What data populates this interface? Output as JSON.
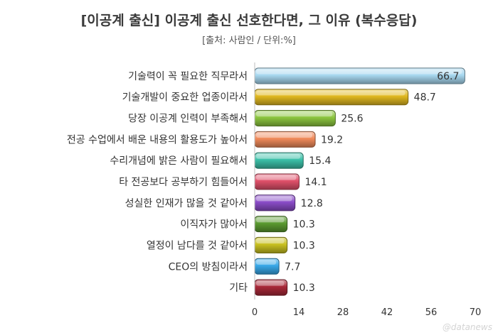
{
  "header": {
    "title": "[이공계 출신] 이공계 출신 선호한다면, 그 이유 (복수응답)",
    "source": "[출처: 사람인 / 단위:%]"
  },
  "watermark": "@datanews",
  "chart_data": {
    "type": "bar",
    "orientation": "horizontal",
    "title": "[이공계 출신] 이공계 출신 선호한다면, 그 이유 (복수응답)",
    "xlabel": "",
    "ylabel": "",
    "xlim": [
      0,
      70
    ],
    "xticks": [
      0,
      14,
      28,
      42,
      56,
      70
    ],
    "grid": false,
    "categories": [
      "기술력이 꼭 필요한 직무라서",
      "기술개발이 중요한 업종이라서",
      "당장 이공계 인력이 부족해서",
      "전공 수업에서 배운 내용의 활용도가 높아서",
      "수리개념에 밝은 사람이 필요해서",
      "타 전공보다 공부하기 힘들어서",
      "성실한 인재가 많을 것 같아서",
      "이직자가 많아서",
      "열정이 남다를 것 같아서",
      "CEO의 방침이라서",
      "기타"
    ],
    "values": [
      66.7,
      48.7,
      25.6,
      19.2,
      15.4,
      14.1,
      12.8,
      10.3,
      10.3,
      7.7,
      10.3
    ],
    "value_labels": [
      "66.7",
      "48.7",
      "25.6",
      "19.2",
      "15.4",
      "14.1",
      "12.8",
      "10.3",
      "10.3",
      "7.7",
      "10.3"
    ],
    "colors": [
      "#a8d8f0",
      "#e0b820",
      "#8cc63f",
      "#f08a5a",
      "#3cc0a8",
      "#e0506a",
      "#8a4cc8",
      "#5a9a30",
      "#c8c020",
      "#38a8e8",
      "#a82838"
    ]
  }
}
